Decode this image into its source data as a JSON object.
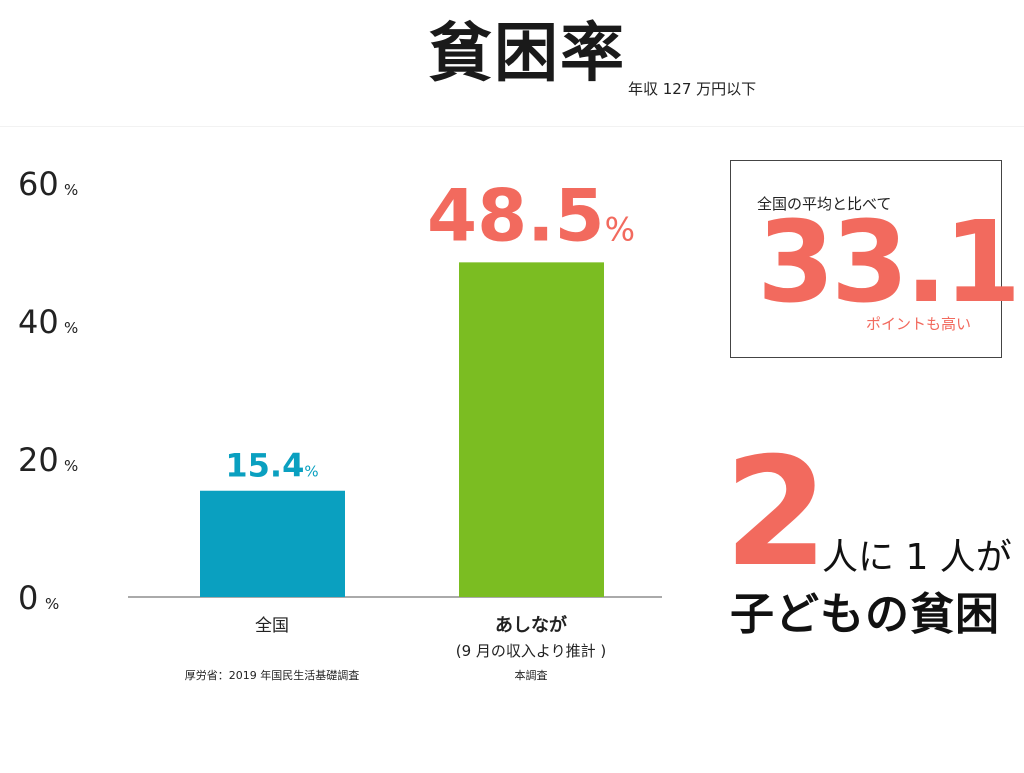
{
  "header": {
    "title": "貧困率",
    "subtitle": "年収 127 万円以下"
  },
  "chart_data": {
    "type": "bar",
    "categories": [
      "全国",
      "あしなが"
    ],
    "category_notes": [
      "",
      "(9 月の収入より推計 )"
    ],
    "values": [
      15.4,
      48.5
    ],
    "value_labels": [
      "15.4",
      "48.5"
    ],
    "value_unit": "%",
    "colors": [
      "#0aa0c0",
      "#7bbd22"
    ],
    "label_colors": [
      "#0aa0c0",
      "#f26a5e"
    ],
    "ylim": [
      0,
      60
    ],
    "yticks": [
      0,
      20,
      40,
      60
    ],
    "ytick_unit": "%",
    "grid": false,
    "sources": [
      "厚労省：2019 年国民生活基礎調査",
      "本調査"
    ]
  },
  "callout": {
    "lead": "全国の平均と比べて",
    "value": "33.1",
    "tail": "ポイントも高い",
    "accent": "#f26a5e"
  },
  "slogan": {
    "number": "2",
    "rest": "人に 1 人が",
    "line2": "子どもの貧困"
  }
}
